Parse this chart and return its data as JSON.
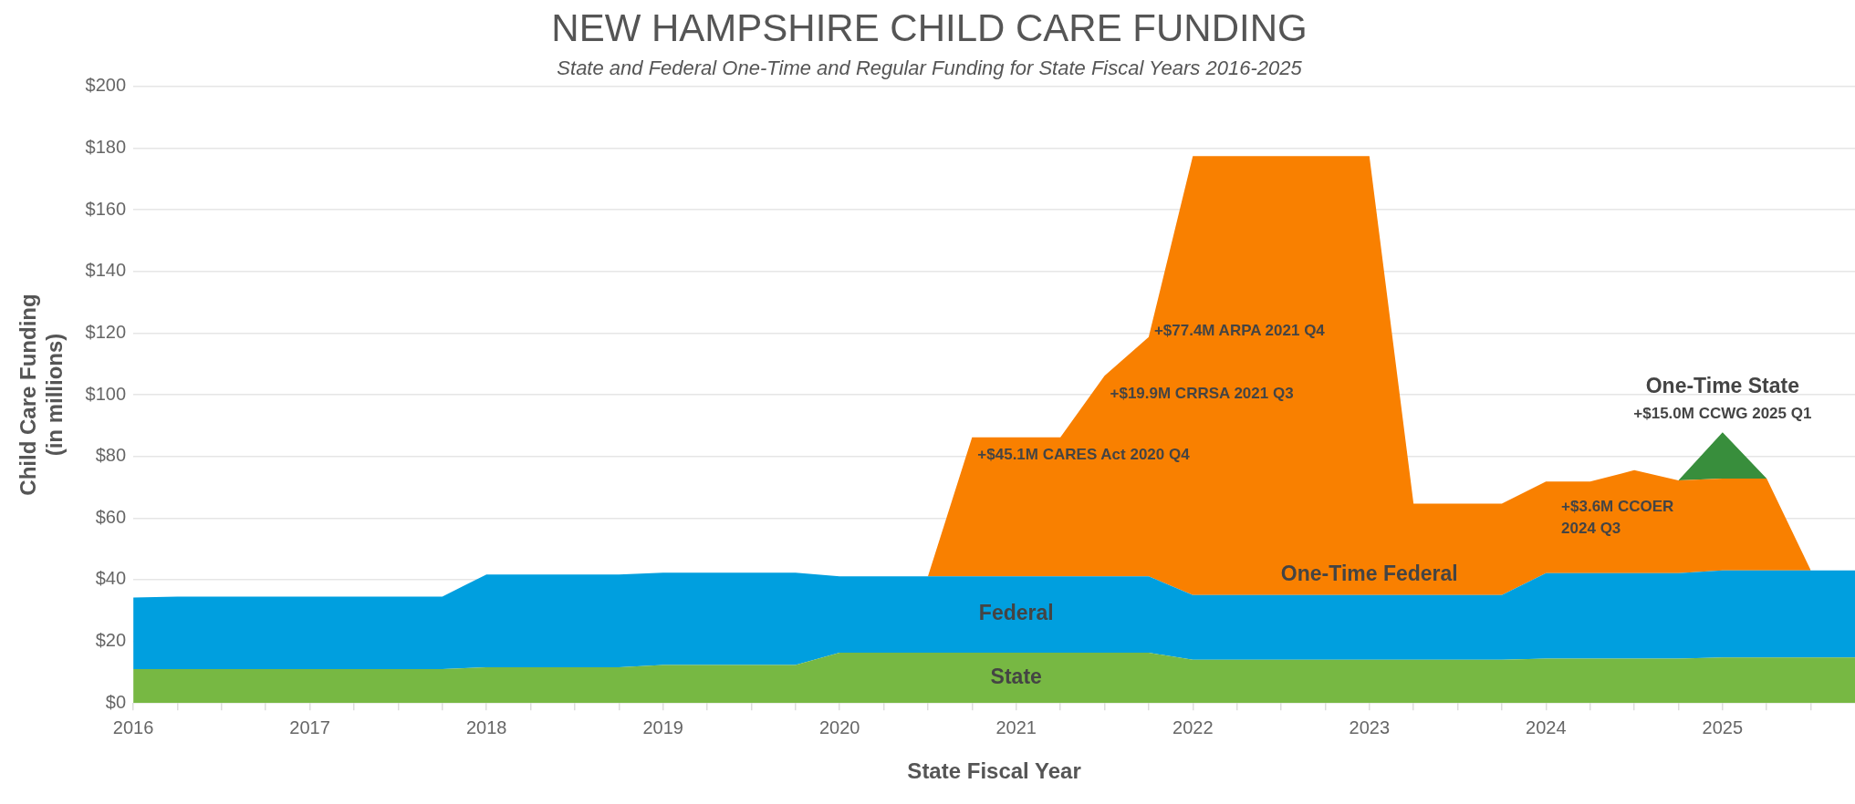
{
  "chart_data": {
    "type": "area",
    "title": "NEW HAMPSHIRE CHILD CARE FUNDING",
    "subtitle": "State and Federal One-Time and Regular Funding for State Fiscal Years 2016-2025",
    "xlabel": "State Fiscal Year",
    "ylabel": "Child Care Funding\n(in millions)",
    "stacked": true,
    "grid": "y",
    "x": [
      2016,
      2016.25,
      2016.5,
      2016.75,
      2017,
      2017.25,
      2017.5,
      2017.75,
      2018,
      2018.25,
      2018.5,
      2018.75,
      2019,
      2019.25,
      2019.5,
      2019.75,
      2020,
      2020.25,
      2020.5,
      2020.75,
      2021,
      2021.25,
      2021.5,
      2021.75,
      2022,
      2022.25,
      2022.5,
      2022.75,
      2023,
      2023.25,
      2023.5,
      2023.75,
      2024,
      2024.25,
      2024.5,
      2024.75,
      2025,
      2025.25,
      2025.5,
      2025.75
    ],
    "series": [
      {
        "name": "State",
        "color": "#77b843",
        "values": [
          11.0,
          11.0,
          11.0,
          11.0,
          11.0,
          11.0,
          11.0,
          11.0,
          11.6,
          11.6,
          11.6,
          11.6,
          12.3,
          12.3,
          12.3,
          12.3,
          16.3,
          16.3,
          16.3,
          16.3,
          16.3,
          16.3,
          16.3,
          16.3,
          14.0,
          14.0,
          14.0,
          14.0,
          14.0,
          14.0,
          14.0,
          14.0,
          14.4,
          14.4,
          14.4,
          14.4,
          14.8,
          14.8,
          14.8,
          14.8
        ]
      },
      {
        "name": "Federal",
        "color": "#009fdf",
        "values": [
          23.2,
          23.5,
          23.5,
          23.5,
          23.5,
          23.5,
          23.5,
          23.5,
          30.1,
          30.1,
          30.1,
          30.1,
          30.0,
          30.0,
          30.0,
          30.0,
          24.8,
          24.8,
          24.8,
          24.8,
          24.8,
          24.8,
          24.8,
          24.8,
          21.0,
          21.0,
          21.0,
          21.0,
          21.0,
          21.0,
          21.0,
          21.0,
          27.7,
          27.7,
          27.7,
          27.7,
          28.2,
          28.2,
          28.2,
          28.2
        ]
      },
      {
        "name": "One-Time Federal",
        "color": "#f98000",
        "values": [
          null,
          null,
          null,
          null,
          null,
          null,
          null,
          null,
          null,
          null,
          null,
          null,
          null,
          null,
          null,
          null,
          null,
          null,
          0,
          45.1,
          45.1,
          45.1,
          65.0,
          77.6,
          142.4,
          142.4,
          142.4,
          142.4,
          142.4,
          29.7,
          29.7,
          29.7,
          29.7,
          29.7,
          33.4,
          30.1,
          29.8,
          29.8,
          0,
          null
        ]
      },
      {
        "name": "One-Time State",
        "color": "#388e3c",
        "values": [
          null,
          null,
          null,
          null,
          null,
          null,
          null,
          null,
          null,
          null,
          null,
          null,
          null,
          null,
          null,
          null,
          null,
          null,
          null,
          null,
          null,
          null,
          null,
          null,
          null,
          null,
          null,
          null,
          null,
          null,
          null,
          null,
          null,
          null,
          null,
          0,
          15.0,
          0,
          null,
          null
        ]
      }
    ],
    "xlim": [
      2016,
      2025.75
    ],
    "xticks": [
      {
        "value": 2016,
        "label": "2016"
      },
      {
        "value": 2016.25,
        "label": null
      },
      {
        "value": 2016.5,
        "label": null
      },
      {
        "value": 2016.75,
        "label": null
      },
      {
        "value": 2017,
        "label": "2017"
      },
      {
        "value": 2017.25,
        "label": null
      },
      {
        "value": 2017.5,
        "label": null
      },
      {
        "value": 2017.75,
        "label": null
      },
      {
        "value": 2018,
        "label": "2018"
      },
      {
        "value": 2018.25,
        "label": null
      },
      {
        "value": 2018.5,
        "label": null
      },
      {
        "value": 2018.75,
        "label": null
      },
      {
        "value": 2019,
        "label": "2019"
      },
      {
        "value": 2019.25,
        "label": null
      },
      {
        "value": 2019.5,
        "label": null
      },
      {
        "value": 2019.75,
        "label": null
      },
      {
        "value": 2020,
        "label": "2020"
      },
      {
        "value": 2020.25,
        "label": null
      },
      {
        "value": 2020.5,
        "label": null
      },
      {
        "value": 2020.75,
        "label": null
      },
      {
        "value": 2021,
        "label": "2021"
      },
      {
        "value": 2021.25,
        "label": null
      },
      {
        "value": 2021.5,
        "label": null
      },
      {
        "value": 2021.75,
        "label": null
      },
      {
        "value": 2022,
        "label": "2022"
      },
      {
        "value": 2022.25,
        "label": null
      },
      {
        "value": 2022.5,
        "label": null
      },
      {
        "value": 2022.75,
        "label": null
      },
      {
        "value": 2023,
        "label": "2023"
      },
      {
        "value": 2023.25,
        "label": null
      },
      {
        "value": 2023.5,
        "label": null
      },
      {
        "value": 2023.75,
        "label": null
      },
      {
        "value": 2024,
        "label": "2024"
      },
      {
        "value": 2024.25,
        "label": null
      },
      {
        "value": 2024.5,
        "label": null
      },
      {
        "value": 2024.75,
        "label": null
      },
      {
        "value": 2025,
        "label": "2025"
      },
      {
        "value": 2025.25,
        "label": null
      },
      {
        "value": 2025.5,
        "label": null
      }
    ],
    "ylim": [
      0,
      200
    ],
    "yticks": [
      {
        "value": 0,
        "label": "$0"
      },
      {
        "value": 20,
        "label": "$20"
      },
      {
        "value": 40,
        "label": "$40"
      },
      {
        "value": 60,
        "label": "$60"
      },
      {
        "value": 80,
        "label": "$80"
      },
      {
        "value": 100,
        "label": "$100"
      },
      {
        "value": 120,
        "label": "$120"
      },
      {
        "value": 140,
        "label": "$140"
      },
      {
        "value": 160,
        "label": "$160"
      },
      {
        "value": 180,
        "label": "$180"
      },
      {
        "value": 200,
        "label": "$200"
      }
    ],
    "annotations": [
      {
        "text": "+$45.1M CARES Act 2020 Q4",
        "x": 2020.75,
        "y": 86.2
      },
      {
        "text": "+$19.9M CRRSA 2021 Q3",
        "x": 2021.5,
        "y": 106.1
      },
      {
        "text": "+$77.4M ARPA 2021 Q4",
        "x": 2021.75,
        "y": 118.7
      },
      {
        "text": "+$3.6M CCOER\n2024 Q3",
        "x": 2024.5,
        "y": 75.5
      },
      {
        "text": "+$15.0M CCWG 2025 Q1",
        "x": 2025,
        "y": 87.8
      }
    ]
  }
}
